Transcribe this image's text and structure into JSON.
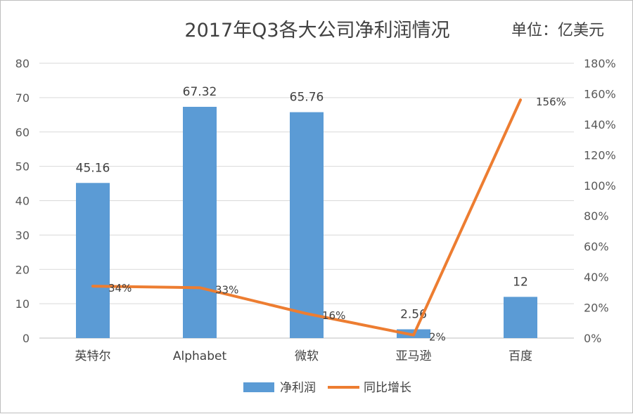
{
  "chart": {
    "title": "2017年Q3各大公司净利润情况",
    "unit": "单位：亿美元"
  },
  "chart_data": {
    "type": "bar",
    "title": "2017年Q3各大公司净利润情况",
    "categories": [
      "英特尔",
      "Alphabet",
      "微软",
      "亚马逊",
      "百度"
    ],
    "series": [
      {
        "name": "净利润",
        "type": "bar",
        "axis": "left",
        "color": "#5b9bd5",
        "values": [
          45.16,
          67.32,
          65.76,
          2.56,
          12
        ],
        "labels": [
          "45.16",
          "67.32",
          "65.76",
          "2.56",
          "12"
        ]
      },
      {
        "name": "同比增长",
        "type": "line",
        "axis": "right",
        "color": "#ed7d31",
        "values": [
          34,
          33,
          16,
          2,
          156
        ],
        "labels": [
          "34%",
          "33%",
          "16%",
          "2%",
          "156%"
        ]
      }
    ],
    "y_left": {
      "ylim": [
        0,
        80
      ],
      "ticks": [
        "0",
        "10",
        "20",
        "30",
        "40",
        "50",
        "60",
        "70",
        "80"
      ]
    },
    "y_right": {
      "ylim": [
        0,
        180
      ],
      "ticks": [
        "0%",
        "20%",
        "40%",
        "60%",
        "80%",
        "100%",
        "120%",
        "140%",
        "160%",
        "180%"
      ]
    },
    "grid": true,
    "legend_position": "bottom"
  }
}
